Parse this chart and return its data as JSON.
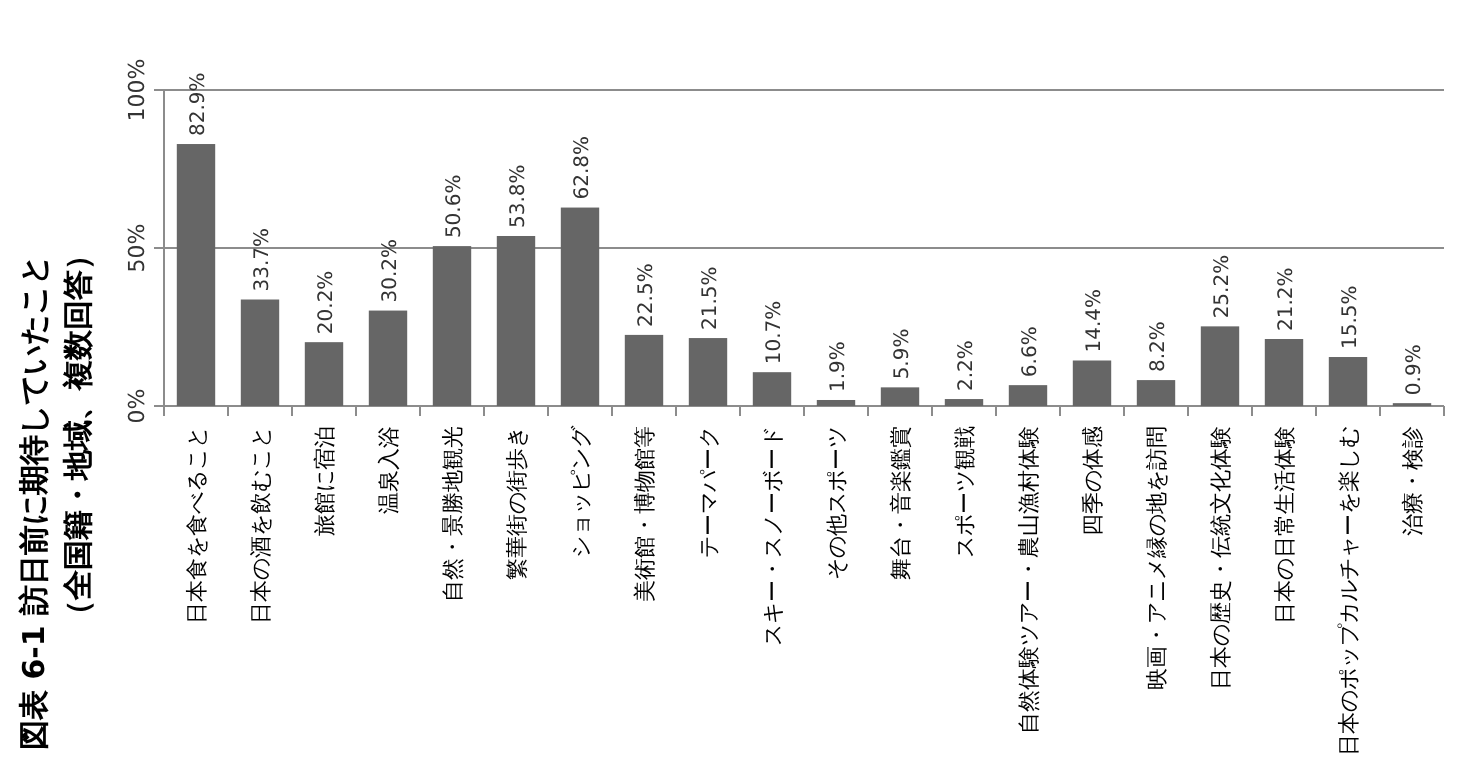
{
  "chart_data": {
    "type": "bar",
    "title": "図表 6-1 訪日前に期待していたこと",
    "subtitle": "（全国籍・地域、複数回答）",
    "categories": [
      "日本食を食べること",
      "日本の酒を飲むこと",
      "旅館に宿泊",
      "温泉入浴",
      "自然・景勝地観光",
      "繁華街の街歩き",
      "ショッピング",
      "美術館・博物館等",
      "テーマパーク",
      "スキー・スノーボード",
      "その他スポーツ",
      "舞台・音楽鑑賞",
      "スポーツ観戦",
      "自然体験ツアー・農山漁村体験",
      "四季の体感",
      "映画・アニメ縁の地を訪問",
      "日本の歴史・伝統文化体験",
      "日本の日常生活体験",
      "日本のポップカルチャーを楽しむ",
      "治療・検診"
    ],
    "values": [
      82.9,
      33.7,
      20.2,
      30.2,
      50.6,
      53.8,
      62.8,
      22.5,
      21.5,
      10.7,
      1.9,
      5.9,
      2.2,
      6.6,
      14.4,
      8.2,
      25.2,
      21.2,
      15.5,
      0.9
    ],
    "value_labels": [
      "82.9%",
      "33.7%",
      "20.2%",
      "30.2%",
      "50.6%",
      "53.8%",
      "62.8%",
      "22.5%",
      "21.5%",
      "10.7%",
      "1.9%",
      "5.9%",
      "2.2%",
      "6.6%",
      "14.4%",
      "8.2%",
      "25.2%",
      "21.2%",
      "15.5%",
      "0.9%"
    ],
    "color": "#666666",
    "ylim": [
      0,
      100
    ],
    "yticks": [
      {
        "value": 0,
        "label": "0%"
      },
      {
        "value": 50,
        "label": "50%"
      },
      {
        "value": 100,
        "label": "100%"
      }
    ],
    "grid": "y"
  }
}
